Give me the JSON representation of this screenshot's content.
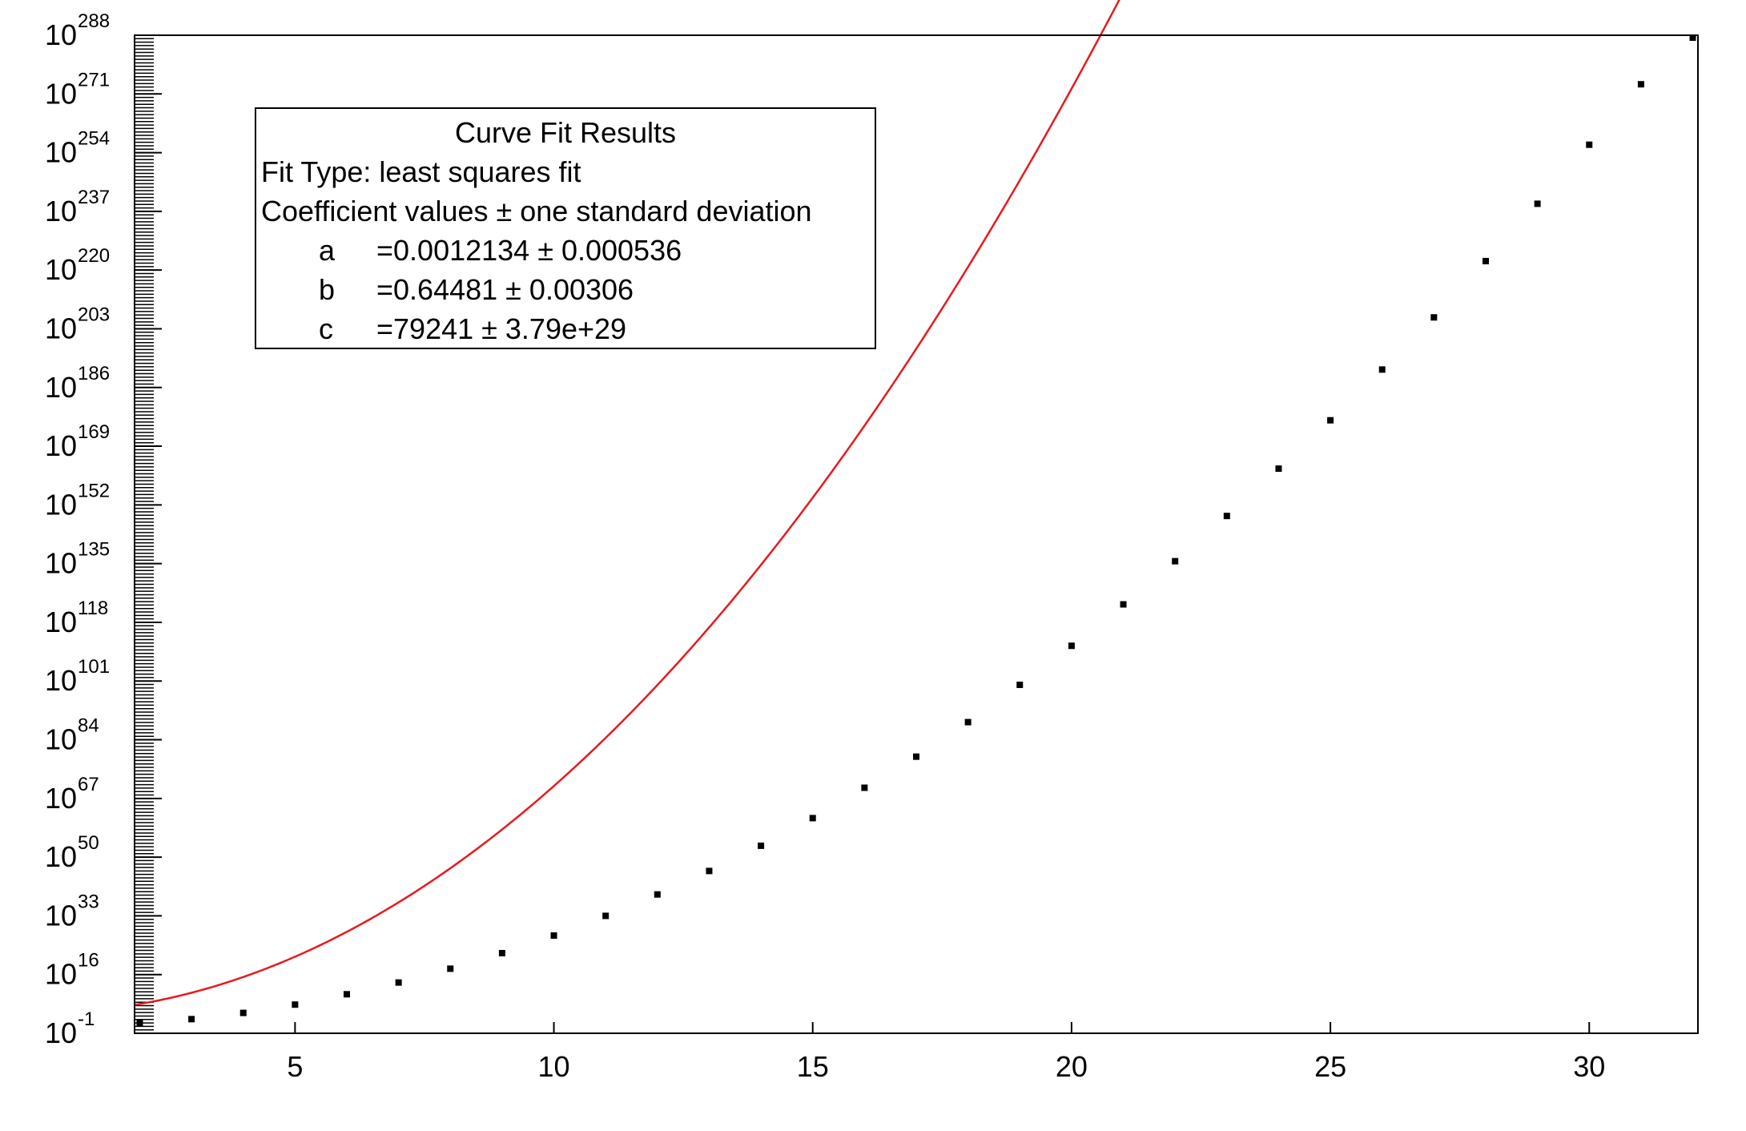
{
  "chart_data": {
    "type": "scatter",
    "title": "",
    "xlabel": "",
    "ylabel": "",
    "y_scale": "log",
    "xlim": [
      1.9,
      32.1
    ],
    "ylim_log10": [
      -1,
      288
    ],
    "x_ticks": [
      5,
      10,
      15,
      20,
      25,
      30
    ],
    "y_tick_exponents": [
      -1,
      16,
      33,
      50,
      67,
      84,
      101,
      118,
      135,
      152,
      169,
      186,
      203,
      220,
      237,
      254,
      271,
      288
    ],
    "y_tick_base": "10",
    "series": [
      {
        "kind": "points",
        "color": "#000000",
        "x": [
          2,
          3,
          4,
          5,
          6,
          7,
          8,
          9,
          10,
          11,
          12,
          13,
          14,
          15,
          16,
          17,
          18,
          19,
          20,
          21,
          22,
          23,
          24,
          25,
          26,
          27,
          28,
          29,
          30,
          31,
          32
        ],
        "y_log10": [
          1.9,
          3.1,
          4.9,
          7.3,
          10.3,
          13.7,
          17.7,
          22.2,
          27.3,
          33.0,
          39.2,
          46.0,
          53.3,
          61.3,
          70.1,
          79.1,
          89.1,
          99.9,
          111.2,
          123.2,
          135.7,
          148.8,
          162.5,
          176.5,
          191.2,
          206.3,
          222.6,
          239.2,
          256.3,
          273.8,
          291.5
        ]
      },
      {
        "kind": "fit-curve",
        "color": "#e8191e",
        "model": "log10(y) = a*x^3 + b*x^2 + log10(c)",
        "a": 0.0012134,
        "b": 0.64481,
        "c": 79241
      }
    ],
    "annotation": {
      "title": "Curve Fit Results",
      "fit_type": "Fit Type: least squares fit",
      "coef_header": "Coefficient values ± one standard deviation",
      "coefficients": [
        {
          "name": "a",
          "value": "=0.0012134 ± 0.000536"
        },
        {
          "name": "b",
          "value": "=0.64481 ± 0.00306"
        },
        {
          "name": "c",
          "value": "=79241 ± 3.79e+29"
        }
      ]
    }
  }
}
